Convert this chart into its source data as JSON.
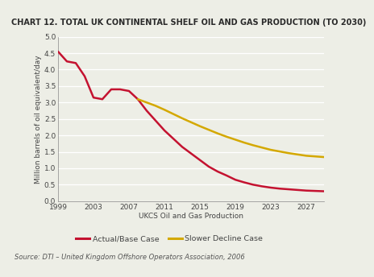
{
  "title": "CHART 12. TOTAL UK CONTINENTAL SHELF OIL AND GAS PRODUCTION (TO 2030)",
  "xlabel": "UKCS Oil and Gas Production",
  "ylabel": "Million barrels of oil equivalent/day",
  "source": "Source: DTI – United Kingdom Offshore Operators Association, 2006",
  "legend_actual": "Actual/Base Case",
  "legend_slower": "Slower Decline Case",
  "xlim": [
    1999,
    2029
  ],
  "ylim": [
    0.0,
    5.0
  ],
  "yticks": [
    0.0,
    0.5,
    1.0,
    1.5,
    2.0,
    2.5,
    3.0,
    3.5,
    4.0,
    4.5,
    5.0
  ],
  "xticks": [
    1999,
    2003,
    2007,
    2011,
    2015,
    2019,
    2023,
    2027
  ],
  "actual_x": [
    1999,
    2000,
    2001,
    2002,
    2003,
    2004,
    2005,
    2006,
    2007,
    2008,
    2009,
    2010,
    2011,
    2012,
    2013,
    2014,
    2015,
    2016,
    2017,
    2018,
    2019,
    2020,
    2021,
    2022,
    2023,
    2024,
    2025,
    2026,
    2027,
    2028,
    2029
  ],
  "actual_y": [
    4.55,
    4.25,
    4.2,
    3.8,
    3.15,
    3.1,
    3.4,
    3.4,
    3.35,
    3.1,
    2.75,
    2.45,
    2.15,
    1.9,
    1.65,
    1.45,
    1.25,
    1.05,
    0.9,
    0.78,
    0.65,
    0.57,
    0.5,
    0.45,
    0.41,
    0.38,
    0.36,
    0.34,
    0.32,
    0.31,
    0.3
  ],
  "slower_x": [
    2008,
    2009,
    2010,
    2011,
    2012,
    2013,
    2014,
    2015,
    2016,
    2017,
    2018,
    2019,
    2020,
    2021,
    2022,
    2023,
    2024,
    2025,
    2026,
    2027,
    2028,
    2029
  ],
  "slower_y": [
    3.1,
    3.0,
    2.9,
    2.78,
    2.65,
    2.52,
    2.4,
    2.28,
    2.17,
    2.06,
    1.96,
    1.87,
    1.78,
    1.7,
    1.63,
    1.56,
    1.51,
    1.46,
    1.42,
    1.38,
    1.36,
    1.34
  ],
  "actual_color": "#c41230",
  "slower_color": "#d4a800",
  "bg_color": "#edeee6",
  "line_width": 1.8,
  "grid_color": "#ffffff",
  "axis_label_fontsize": 6.5,
  "tick_fontsize": 6.5,
  "title_fontsize": 7.0,
  "source_fontsize": 6.0
}
